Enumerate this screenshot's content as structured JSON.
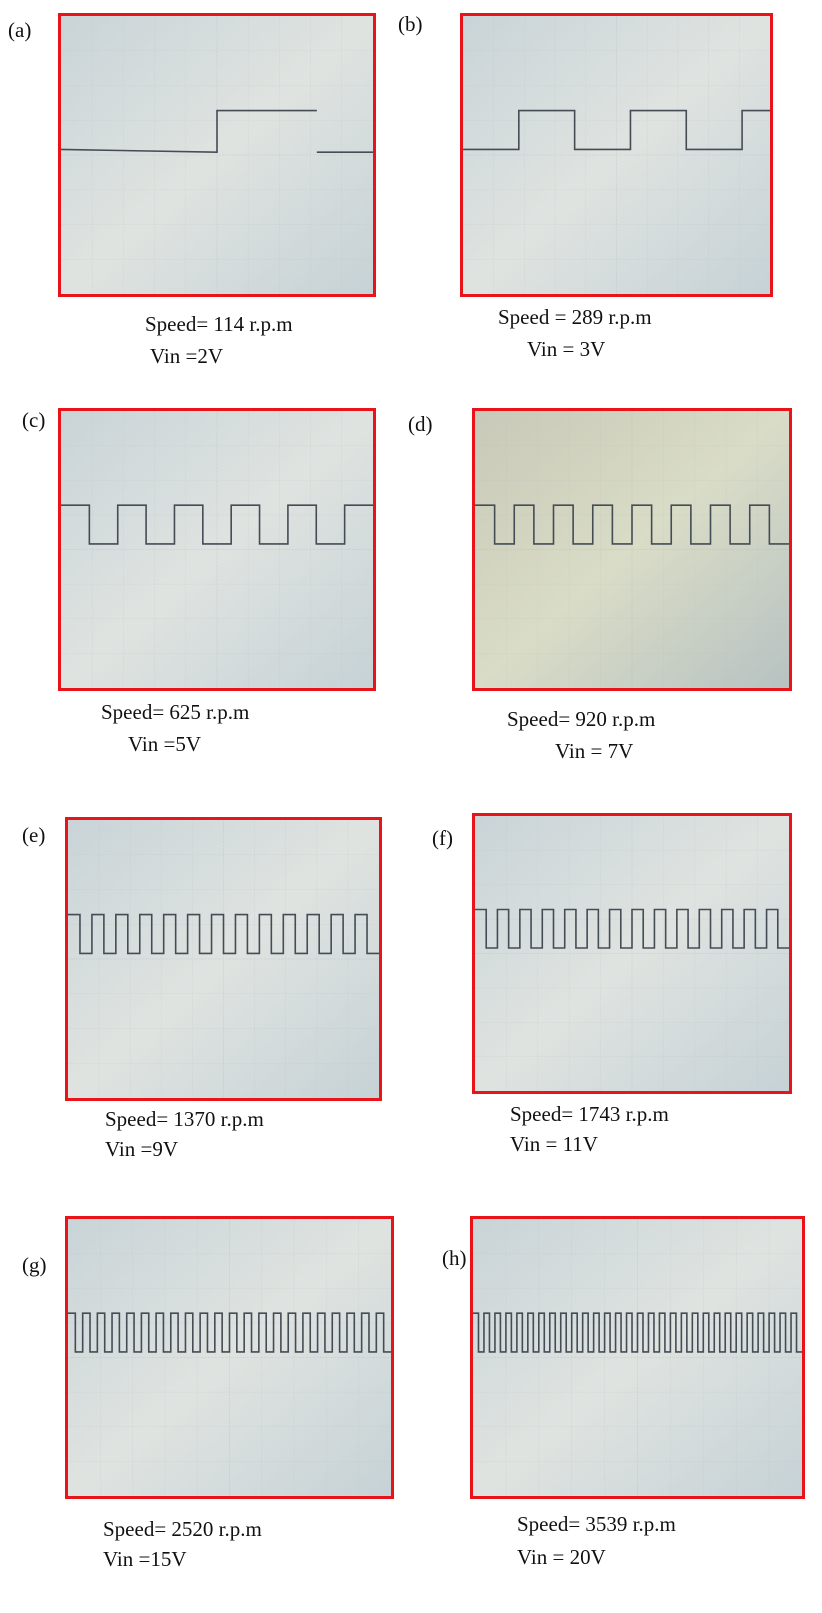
{
  "panels": [
    {
      "label": "(a)",
      "speed": "Speed= 114 r.p.m",
      "vin": "Vin =2V"
    },
    {
      "label": "(b)",
      "speed": "Speed = 289 r.p.m",
      "vin": "Vin = 3V"
    },
    {
      "label": "(c)",
      "speed": "Speed= 625 r.p.m",
      "vin": "Vin =5V"
    },
    {
      "label": "(d)",
      "speed": "Speed= 920 r.p.m",
      "vin": "Vin = 7V"
    },
    {
      "label": "(e)",
      "speed": "Speed= 1370 r.p.m",
      "vin": "Vin =9V"
    },
    {
      "label": "(f)",
      "speed": "Speed= 1743 r.p.m",
      "vin": "Vin = 11V"
    },
    {
      "label": "(g)",
      "speed": "Speed= 2520 r.p.m",
      "vin": "Vin =15V"
    },
    {
      "label": "(h)",
      "speed": "Speed= 3539 r.p.m",
      "vin": "Vin = 20V"
    }
  ]
}
